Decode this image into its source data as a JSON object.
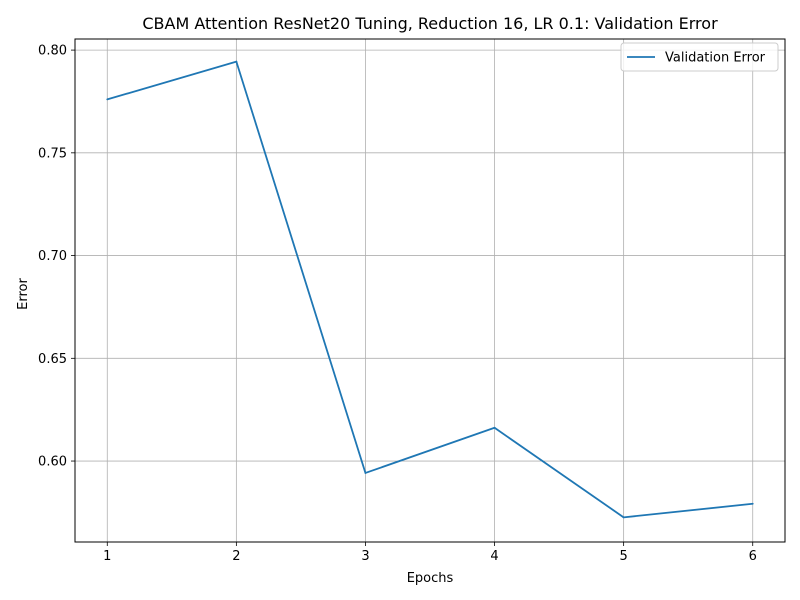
{
  "chart_data": {
    "type": "line",
    "title": "CBAM Attention ResNet20 Tuning, Reduction 16, LR 0.1: Validation Error",
    "xlabel": "Epochs",
    "ylabel": "Error",
    "x": [
      1,
      2,
      3,
      4,
      5,
      6
    ],
    "series": [
      {
        "name": "Validation Error",
        "color": "#1f77b4",
        "values": [
          0.776,
          0.7944,
          0.5942,
          0.6162,
          0.5726,
          0.5792
        ]
      }
    ],
    "xlim": [
      0.75,
      6.25
    ],
    "ylim": [
      0.5606,
      0.8054
    ],
    "xticks": [
      "1",
      "2",
      "3",
      "4",
      "5",
      "6"
    ],
    "yticks": [
      "0.60",
      "0.65",
      "0.70",
      "0.75",
      "0.80"
    ],
    "grid": true,
    "legend_position": "top-right"
  }
}
